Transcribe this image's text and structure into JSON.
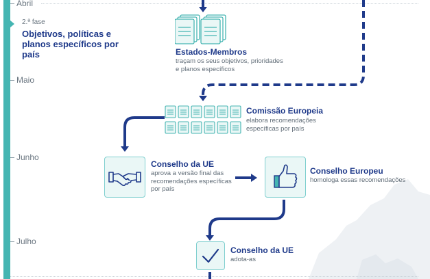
{
  "timeline": {
    "months": [
      "Abril",
      "Maio",
      "Junho",
      "Julho"
    ],
    "phase_number": "2.ª fase",
    "phase_title": "Objetivos, políticas e planos específicos por país"
  },
  "steps": {
    "member_states": {
      "title": "Estados-Membros",
      "desc": "traçam os seus objetivos, prioridades e planos específicos",
      "icon": "documents-icon"
    },
    "commission": {
      "title": "Comissão Europeia",
      "desc": "elabora recomendações específicas por país",
      "icon": "documents-grid-icon"
    },
    "council_approve": {
      "title": "Conselho da UE",
      "desc": "aprova a versão final das recomendações específicas por país",
      "icon": "handshake-icon"
    },
    "european_council": {
      "title": "Conselho Europeu",
      "desc": "homologa essas recomendações",
      "icon": "thumbs-up-icon"
    },
    "council_adopt": {
      "title": "Conselho da UE",
      "desc": "adota-as",
      "icon": "checkmark-icon"
    }
  },
  "colors": {
    "accent": "#45b5b2",
    "navy": "#1f3a8a",
    "icon_fill": "#eaf7f6"
  }
}
